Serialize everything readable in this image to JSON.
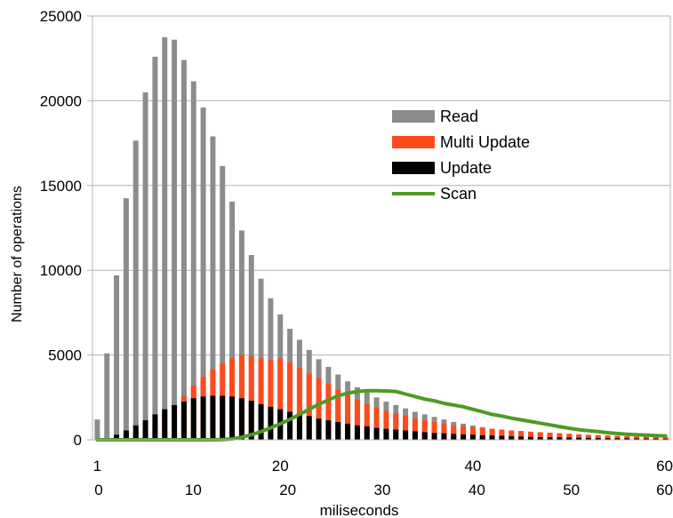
{
  "chart_data": {
    "type": "bar",
    "ylabel": "Number of operations",
    "xlabel": "miliseconds",
    "ylim": [
      0,
      25000
    ],
    "yticks": [
      "0",
      "5000",
      "10000",
      "15000",
      "20000",
      "25000"
    ],
    "xlim": [
      0,
      60
    ],
    "xticks_top": [
      "1",
      "20",
      "40",
      "60"
    ],
    "xticks_bottom": [
      "0",
      "10",
      "20",
      "30",
      "40",
      "50",
      "60"
    ],
    "grid": true,
    "legend_position": "upper-right",
    "series": [
      {
        "name": "Read",
        "kind": "bar",
        "color": "#8c8c8c",
        "values": [
          1200,
          5100,
          9700,
          14250,
          17650,
          20500,
          22600,
          23750,
          23600,
          22400,
          21150,
          19600,
          17900,
          16150,
          14050,
          12350,
          10900,
          9500,
          8350,
          7400,
          6550,
          5900,
          5300,
          4750,
          4300,
          3850,
          3450,
          3100,
          2800,
          2500,
          2250,
          2050,
          1850,
          1650,
          1500,
          1350,
          1200,
          1050,
          950,
          850,
          750,
          650,
          600,
          550,
          500,
          450,
          400,
          360,
          330,
          300,
          270,
          240,
          220,
          200,
          180,
          160,
          150,
          130,
          120,
          110
        ]
      },
      {
        "name": "Multi Update",
        "kind": "bar",
        "color": "#ff4a1c",
        "values": [
          0,
          0,
          0,
          100,
          300,
          600,
          1000,
          1500,
          2000,
          2600,
          3200,
          3700,
          4150,
          4500,
          4800,
          5000,
          4950,
          4800,
          4700,
          4800,
          4550,
          4250,
          3900,
          3650,
          3300,
          2950,
          2650,
          2350,
          2100,
          1900,
          1700,
          1550,
          1400,
          1250,
          1150,
          1050,
          950,
          850,
          800,
          750,
          700,
          650,
          600,
          550,
          520,
          480,
          450,
          420,
          390,
          360,
          330,
          300,
          280,
          260,
          240,
          220,
          200,
          190,
          180,
          160
        ]
      },
      {
        "name": "Update",
        "kind": "bar",
        "color": "#000000",
        "values": [
          0,
          0,
          300,
          550,
          850,
          1150,
          1500,
          1800,
          2050,
          2250,
          2450,
          2550,
          2600,
          2600,
          2550,
          2450,
          2300,
          2100,
          1950,
          1800,
          1650,
          1500,
          1400,
          1250,
          1150,
          1050,
          950,
          850,
          800,
          700,
          650,
          600,
          550,
          500,
          450,
          400,
          380,
          350,
          320,
          300,
          270,
          250,
          230,
          210,
          190,
          170,
          160,
          150,
          140,
          130,
          120,
          110,
          100,
          95,
          90,
          85,
          80,
          75,
          70,
          65
        ]
      },
      {
        "name": "Scan",
        "kind": "line",
        "color": "#4f9a25",
        "values": [
          0,
          0,
          0,
          0,
          0,
          0,
          0,
          0,
          0,
          0,
          0,
          0,
          0,
          10,
          50,
          150,
          300,
          480,
          700,
          950,
          1200,
          1500,
          1800,
          2100,
          2350,
          2600,
          2750,
          2850,
          2900,
          2900,
          2880,
          2850,
          2700,
          2550,
          2400,
          2300,
          2150,
          2050,
          1950,
          1800,
          1650,
          1500,
          1400,
          1280,
          1180,
          1080,
          980,
          880,
          780,
          680,
          600,
          540,
          480,
          420,
          370,
          330,
          300,
          270,
          250,
          230
        ]
      }
    ]
  }
}
